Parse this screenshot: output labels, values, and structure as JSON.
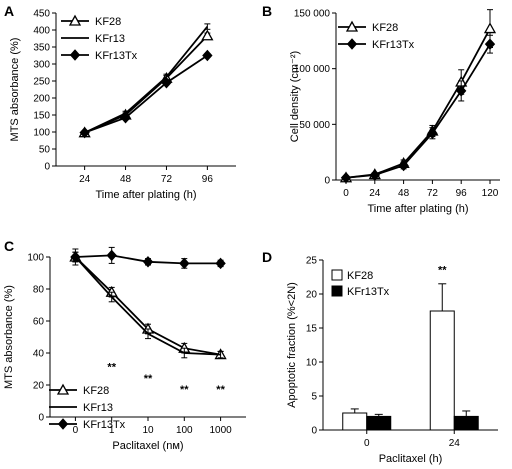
{
  "chart_data": [
    {
      "panel": "A",
      "type": "line",
      "xlabel": "Time after plating (h)",
      "ylabel": "MTS absorbance (%)",
      "categories": [
        "24",
        "48",
        "72",
        "96"
      ],
      "ylim": [
        0,
        450
      ],
      "yticks": [
        0,
        50,
        100,
        150,
        200,
        250,
        300,
        350,
        400,
        450
      ],
      "legend_position": "top-left",
      "series": [
        {
          "name": "KF28",
          "marker": "triangle-open",
          "values": [
            98,
            150,
            258,
            383
          ],
          "errors": [
            4,
            6,
            8,
            8
          ]
        },
        {
          "name": "KFr13",
          "marker": "none",
          "values": [
            98,
            155,
            262,
            410
          ],
          "errors": [
            4,
            6,
            8,
            8
          ]
        },
        {
          "name": "KFr13Tx",
          "marker": "diamond-filled",
          "values": [
            98,
            142,
            245,
            325
          ],
          "errors": [
            4,
            6,
            6,
            5
          ]
        }
      ]
    },
    {
      "panel": "B",
      "type": "line",
      "xlabel": "Time after plating (h)",
      "ylabel": "Cell density (cm⁻²)",
      "x": [
        0,
        24,
        48,
        72,
        96,
        120
      ],
      "xlim": [
        0,
        120
      ],
      "ylim": [
        0,
        150000
      ],
      "yticks": [
        0,
        50000,
        100000,
        150000
      ],
      "ytick_labels": [
        "0",
        "50 000",
        "100 000",
        "150 000"
      ],
      "legend_position": "top-left",
      "series": [
        {
          "name": "KF28",
          "marker": "triangle-open",
          "values": [
            2000,
            5000,
            15000,
            44000,
            88000,
            136000
          ],
          "errors": [
            800,
            1500,
            3000,
            5000,
            11000,
            17000
          ]
        },
        {
          "name": "KFr13Tx",
          "marker": "diamond-filled",
          "values": [
            2000,
            4500,
            13000,
            42000,
            80000,
            122000
          ],
          "errors": [
            800,
            1500,
            3000,
            5000,
            9000,
            8000
          ]
        }
      ]
    },
    {
      "panel": "C",
      "type": "line",
      "xlabel": "Paclitaxel (nм)",
      "ylabel": "MTS absorbance (%)",
      "categories": [
        "0",
        "1",
        "10",
        "100",
        "1000"
      ],
      "ylim": [
        0,
        100
      ],
      "yticks": [
        0,
        20,
        40,
        60,
        80,
        100
      ],
      "legend_position": "bottom-left",
      "annotations": [
        {
          "category": "1",
          "y": 29,
          "text": "**"
        },
        {
          "category": "10",
          "y": 22,
          "text": "**"
        },
        {
          "category": "100",
          "y": 15,
          "text": "**"
        },
        {
          "category": "1000",
          "y": 15,
          "text": "**"
        }
      ],
      "series": [
        {
          "name": "KF28",
          "marker": "triangle-open",
          "values": [
            100,
            78,
            55,
            43,
            39
          ],
          "errors": [
            3,
            3,
            3,
            3,
            2
          ]
        },
        {
          "name": "KFr13",
          "marker": "none",
          "values": [
            100,
            75,
            52,
            40,
            39
          ],
          "errors": [
            3,
            3,
            3,
            3,
            2
          ]
        },
        {
          "name": "KFr13Tx",
          "marker": "diamond-filled",
          "values": [
            100,
            101,
            97,
            96,
            96
          ],
          "errors": [
            5,
            5,
            2,
            3,
            2
          ]
        }
      ]
    },
    {
      "panel": "D",
      "type": "bar",
      "xlabel": "Paclitaxel (h)",
      "ylabel": "Apoptotic fraction (%<2N)",
      "categories": [
        "0",
        "24"
      ],
      "ylim": [
        0,
        25
      ],
      "yticks": [
        0,
        5,
        10,
        15,
        20,
        25
      ],
      "legend_position": "top-left",
      "annotations": [
        {
          "category": "24",
          "y": 23,
          "text": "**"
        }
      ],
      "series": [
        {
          "name": "KF28",
          "fill": "#ffffff",
          "values": [
            2.5,
            17.5
          ],
          "errors": [
            0.6,
            4.0
          ]
        },
        {
          "name": "KFr13Tx",
          "fill": "#000000",
          "values": [
            2.0,
            2.0
          ],
          "errors": [
            0.3,
            0.8
          ]
        }
      ]
    }
  ]
}
